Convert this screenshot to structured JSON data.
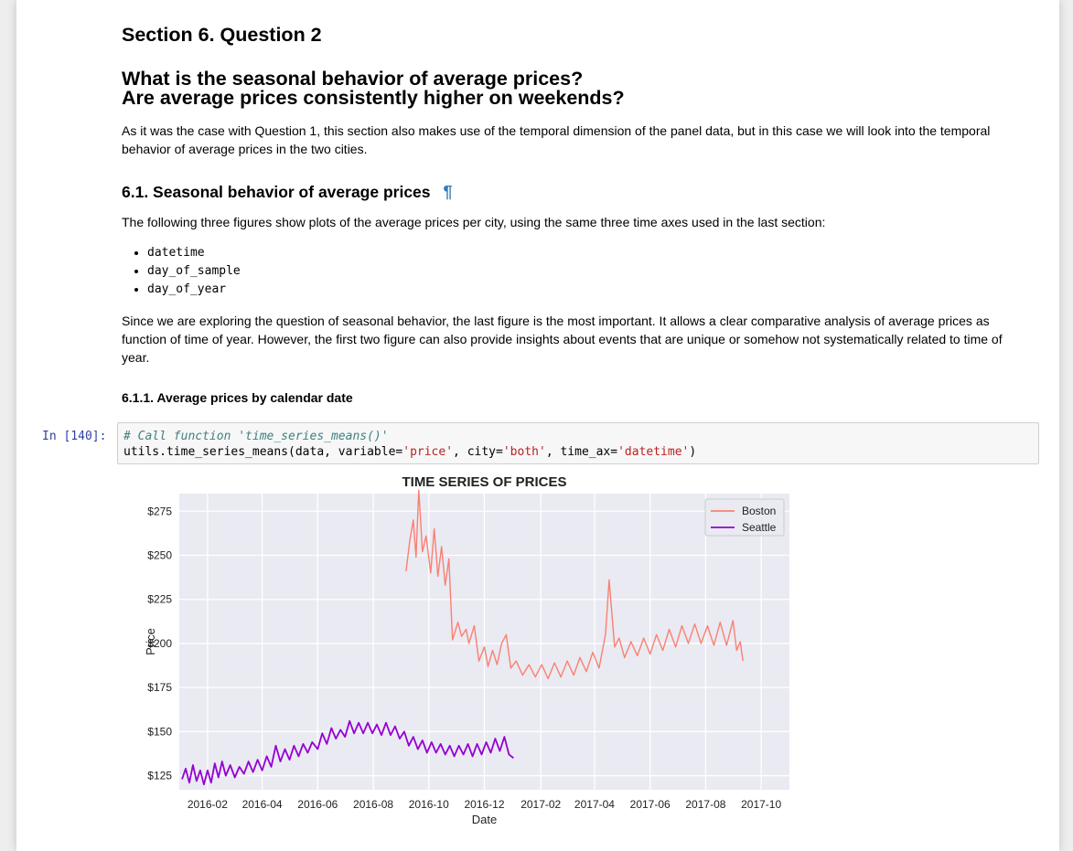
{
  "section_title": "Section 6. Question 2",
  "question_lines": [
    "What is the seasonal behavior of average prices?",
    "Are average prices consistently higher on weekends?"
  ],
  "intro_lines": [
    "As it was the case with Question 1, this section also makes use of the temporal dimension of the panel data, but in this case we will look into the temporal",
    "behavior of average prices in the two cities."
  ],
  "subsection_title": "6.1. Seasonal behavior of average prices",
  "pilcrow": "¶",
  "figures_intro": "The following three figures show plots of the average prices per city, using the same three time axes used in the last section:",
  "time_axes": [
    "datetime",
    "day_of_sample",
    "day_of_year"
  ],
  "explain_lines": [
    "Since we are exploring the question of seasonal behavior, the last figure is the most important. It allows a clear comparative analysis of average prices as",
    "function of time of year. However, the first two figure can also provide insights about events that are unique or somehow not systematically related to time of",
    "year."
  ],
  "subsubsection_title": "6.1.1. Average prices by calendar date",
  "cell": {
    "prompt": "In [140]:",
    "comment": "# Call function 'time_series_means()'",
    "code_pre": "utils.time_series_means(data, variable=",
    "s1": "'price'",
    "code_mid1": ", city=",
    "s2": "'both'",
    "code_mid2": ", time_ax=",
    "s3": "'datetime'",
    "code_post": ")"
  },
  "chart_data": {
    "type": "line",
    "title": "TIME SERIES OF PRICES",
    "xlabel": "Date",
    "ylabel": "Price",
    "x_ticks": [
      "2016-02",
      "2016-04",
      "2016-06",
      "2016-08",
      "2016-10",
      "2016-12",
      "2017-02",
      "2017-04",
      "2017-06",
      "2017-08",
      "2017-10"
    ],
    "y_ticks": [
      "$125",
      "$150",
      "$175",
      "$200",
      "$225",
      "$250",
      "$275"
    ],
    "y_tick_values": [
      125,
      150,
      175,
      200,
      225,
      250,
      275
    ],
    "xlim": [
      "2016-01-01",
      "2017-11-01"
    ],
    "ylim": [
      117,
      285
    ],
    "grid": true,
    "legend": "top-right",
    "colors": {
      "Boston": "#fa8072",
      "Seattle": "#9400d3",
      "background": "#eaeaf2",
      "grid": "#ffffff"
    },
    "series": [
      {
        "name": "Boston",
        "points": [
          [
            "2016-09-06",
            241
          ],
          [
            "2016-09-10",
            258
          ],
          [
            "2016-09-14",
            270
          ],
          [
            "2016-09-17",
            249
          ],
          [
            "2016-09-20",
            287
          ],
          [
            "2016-09-24",
            252
          ],
          [
            "2016-09-28",
            261
          ],
          [
            "2016-10-03",
            240
          ],
          [
            "2016-10-07",
            265
          ],
          [
            "2016-10-11",
            238
          ],
          [
            "2016-10-15",
            255
          ],
          [
            "2016-10-19",
            233
          ],
          [
            "2016-10-23",
            248
          ],
          [
            "2016-10-27",
            202
          ],
          [
            "2016-11-02",
            212
          ],
          [
            "2016-11-06",
            204
          ],
          [
            "2016-11-11",
            208
          ],
          [
            "2016-11-14",
            200
          ],
          [
            "2016-11-20",
            210
          ],
          [
            "2016-11-25",
            190
          ],
          [
            "2016-12-01",
            198
          ],
          [
            "2016-12-05",
            187
          ],
          [
            "2016-12-10",
            196
          ],
          [
            "2016-12-15",
            188
          ],
          [
            "2016-12-20",
            200
          ],
          [
            "2016-12-25",
            205
          ],
          [
            "2016-12-30",
            186
          ],
          [
            "2017-01-05",
            190
          ],
          [
            "2017-01-12",
            182
          ],
          [
            "2017-01-19",
            188
          ],
          [
            "2017-01-26",
            181
          ],
          [
            "2017-02-02",
            188
          ],
          [
            "2017-02-09",
            180
          ],
          [
            "2017-02-16",
            189
          ],
          [
            "2017-02-23",
            181
          ],
          [
            "2017-03-02",
            190
          ],
          [
            "2017-03-09",
            182
          ],
          [
            "2017-03-16",
            192
          ],
          [
            "2017-03-23",
            184
          ],
          [
            "2017-03-30",
            195
          ],
          [
            "2017-04-06",
            186
          ],
          [
            "2017-04-13",
            205
          ],
          [
            "2017-04-17",
            236
          ],
          [
            "2017-04-23",
            198
          ],
          [
            "2017-04-28",
            203
          ],
          [
            "2017-05-04",
            192
          ],
          [
            "2017-05-11",
            201
          ],
          [
            "2017-05-18",
            193
          ],
          [
            "2017-05-25",
            203
          ],
          [
            "2017-06-01",
            194
          ],
          [
            "2017-06-08",
            205
          ],
          [
            "2017-06-15",
            196
          ],
          [
            "2017-06-22",
            208
          ],
          [
            "2017-06-29",
            198
          ],
          [
            "2017-07-06",
            210
          ],
          [
            "2017-07-13",
            200
          ],
          [
            "2017-07-20",
            211
          ],
          [
            "2017-07-27",
            200
          ],
          [
            "2017-08-03",
            210
          ],
          [
            "2017-08-10",
            199
          ],
          [
            "2017-08-17",
            212
          ],
          [
            "2017-08-24",
            199
          ],
          [
            "2017-08-31",
            213
          ],
          [
            "2017-09-04",
            196
          ],
          [
            "2017-09-08",
            201
          ],
          [
            "2017-09-11",
            190
          ]
        ]
      },
      {
        "name": "Seattle",
        "points": [
          [
            "2016-01-04",
            123
          ],
          [
            "2016-01-08",
            129
          ],
          [
            "2016-01-12",
            121
          ],
          [
            "2016-01-16",
            131
          ],
          [
            "2016-01-20",
            122
          ],
          [
            "2016-01-24",
            128
          ],
          [
            "2016-01-28",
            120
          ],
          [
            "2016-02-01",
            128
          ],
          [
            "2016-02-05",
            121
          ],
          [
            "2016-02-09",
            132
          ],
          [
            "2016-02-13",
            124
          ],
          [
            "2016-02-17",
            133
          ],
          [
            "2016-02-21",
            125
          ],
          [
            "2016-02-26",
            131
          ],
          [
            "2016-03-02",
            124
          ],
          [
            "2016-03-07",
            130
          ],
          [
            "2016-03-12",
            126
          ],
          [
            "2016-03-17",
            133
          ],
          [
            "2016-03-22",
            127
          ],
          [
            "2016-03-27",
            134
          ],
          [
            "2016-04-01",
            128
          ],
          [
            "2016-04-06",
            136
          ],
          [
            "2016-04-11",
            130
          ],
          [
            "2016-04-16",
            142
          ],
          [
            "2016-04-21",
            133
          ],
          [
            "2016-04-26",
            140
          ],
          [
            "2016-05-01",
            134
          ],
          [
            "2016-05-06",
            142
          ],
          [
            "2016-05-11",
            136
          ],
          [
            "2016-05-16",
            143
          ],
          [
            "2016-05-21",
            138
          ],
          [
            "2016-05-26",
            144
          ],
          [
            "2016-06-01",
            140
          ],
          [
            "2016-06-06",
            149
          ],
          [
            "2016-06-11",
            143
          ],
          [
            "2016-06-16",
            152
          ],
          [
            "2016-06-21",
            146
          ],
          [
            "2016-06-26",
            151
          ],
          [
            "2016-07-01",
            147
          ],
          [
            "2016-07-06",
            156
          ],
          [
            "2016-07-11",
            149
          ],
          [
            "2016-07-16",
            155
          ],
          [
            "2016-07-21",
            149
          ],
          [
            "2016-07-26",
            155
          ],
          [
            "2016-07-31",
            149
          ],
          [
            "2016-08-05",
            154
          ],
          [
            "2016-08-10",
            148
          ],
          [
            "2016-08-15",
            155
          ],
          [
            "2016-08-20",
            148
          ],
          [
            "2016-08-25",
            153
          ],
          [
            "2016-08-30",
            146
          ],
          [
            "2016-09-04",
            150
          ],
          [
            "2016-09-09",
            142
          ],
          [
            "2016-09-14",
            147
          ],
          [
            "2016-09-19",
            140
          ],
          [
            "2016-09-24",
            145
          ],
          [
            "2016-09-29",
            138
          ],
          [
            "2016-10-04",
            144
          ],
          [
            "2016-10-09",
            138
          ],
          [
            "2016-10-14",
            143
          ],
          [
            "2016-10-19",
            137
          ],
          [
            "2016-10-24",
            142
          ],
          [
            "2016-10-29",
            136
          ],
          [
            "2016-11-03",
            142
          ],
          [
            "2016-11-08",
            137
          ],
          [
            "2016-11-13",
            143
          ],
          [
            "2016-11-18",
            136
          ],
          [
            "2016-11-23",
            143
          ],
          [
            "2016-11-28",
            137
          ],
          [
            "2016-12-03",
            144
          ],
          [
            "2016-12-08",
            138
          ],
          [
            "2016-12-13",
            146
          ],
          [
            "2016-12-18",
            139
          ],
          [
            "2016-12-23",
            147
          ],
          [
            "2016-12-28",
            137
          ],
          [
            "2017-01-02",
            135
          ]
        ]
      }
    ]
  }
}
